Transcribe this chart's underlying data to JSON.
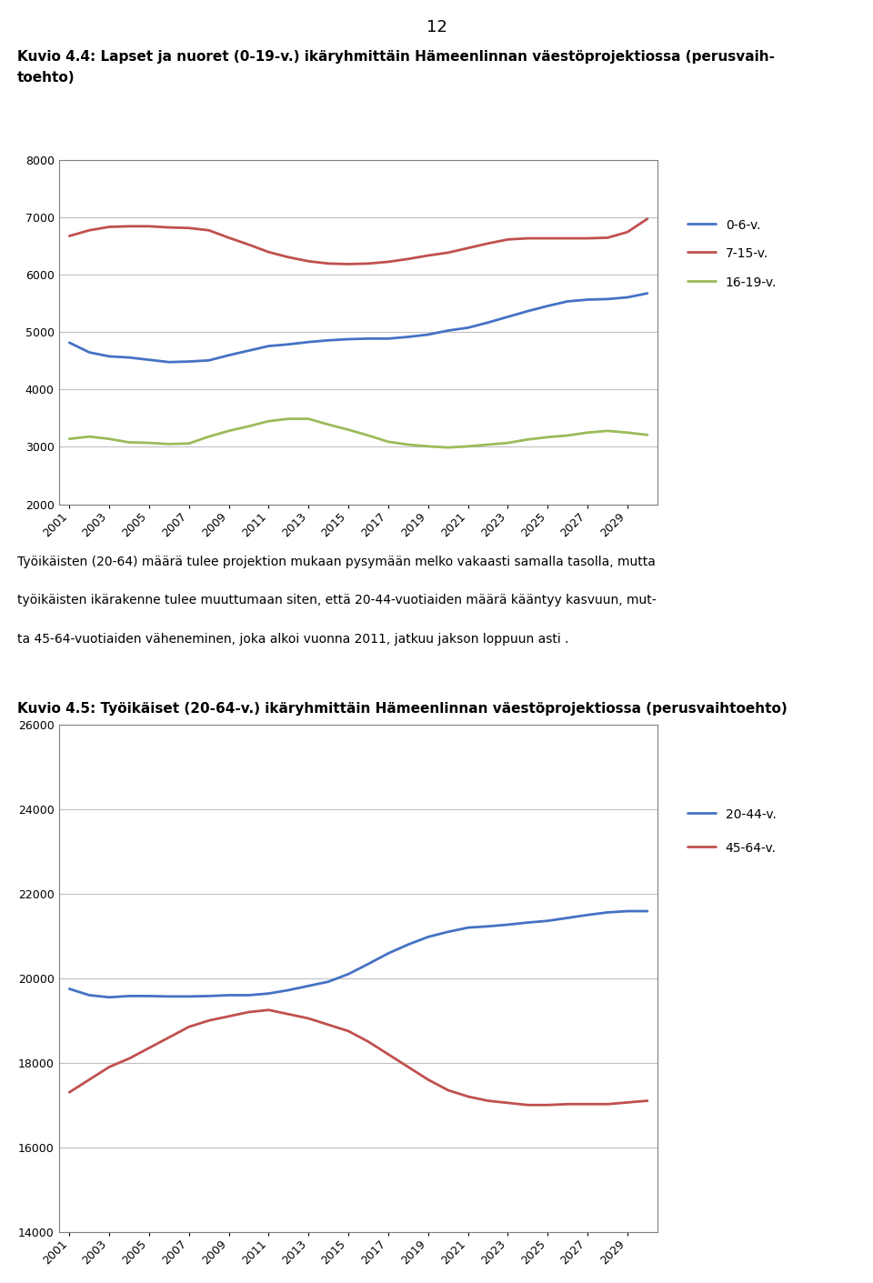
{
  "page_number": "12",
  "title1_line1": "Kuvio 4.4: Lapset ja nuoret (0-19-v.) ikäryhmittäin Hämeenlinnan väestöprojektiossa (perusvaih-",
  "title1_line2": "toehto)",
  "middle_text_line1": "Työikäisten (20-64) määrä tulee projektion mukaan pysymään melko vakaasti samalla tasolla, mutta",
  "middle_text_line2": "työikäisten ikärakenne tulee muuttumaan siten, että 20-44-vuotiaiden määrä kääntyy kasvuun, mut-",
  "middle_text_line3": "ta 45-64-vuotiaiden väheneminen, joka alkoi vuonna 2011, jatkuu jakson loppuun asti .",
  "title2": "Kuvio 4.5: Työikäiset (20-64-v.) ikäryhmittäin Hämeenlinnan väestöprojektiossa (perusvaihtoehto)",
  "years": [
    2001,
    2002,
    2003,
    2004,
    2005,
    2006,
    2007,
    2008,
    2009,
    2010,
    2011,
    2012,
    2013,
    2014,
    2015,
    2016,
    2017,
    2018,
    2019,
    2020,
    2021,
    2022,
    2023,
    2024,
    2025,
    2026,
    2027,
    2028,
    2029,
    2030
  ],
  "chart1": {
    "series_order": [
      "0-6-v.",
      "7-15-v.",
      "16-19-v."
    ],
    "series": {
      "0-6-v.": [
        4820,
        4650,
        4580,
        4560,
        4520,
        4480,
        4490,
        4510,
        4600,
        4680,
        4760,
        4790,
        4830,
        4860,
        4880,
        4890,
        4890,
        4920,
        4960,
        5030,
        5080,
        5170,
        5270,
        5370,
        5460,
        5540,
        5570,
        5580,
        5610,
        5680
      ],
      "7-15-v.": [
        6680,
        6780,
        6840,
        6850,
        6850,
        6830,
        6820,
        6780,
        6650,
        6530,
        6400,
        6310,
        6240,
        6200,
        6190,
        6200,
        6230,
        6280,
        6340,
        6390,
        6470,
        6550,
        6620,
        6640,
        6640,
        6640,
        6640,
        6650,
        6750,
        6980
      ],
      "16-19-v.": [
        3140,
        3180,
        3140,
        3080,
        3070,
        3050,
        3060,
        3180,
        3280,
        3360,
        3450,
        3490,
        3490,
        3390,
        3300,
        3200,
        3090,
        3040,
        3010,
        2990,
        3010,
        3040,
        3070,
        3130,
        3170,
        3200,
        3250,
        3280,
        3250,
        3210
      ]
    },
    "colors": {
      "0-6-v.": "#4472C4",
      "7-15-v.": "#C0504D",
      "16-19-v.": "#9BBB59"
    },
    "ylim": [
      2000,
      8000
    ],
    "yticks": [
      2000,
      3000,
      4000,
      5000,
      6000,
      7000,
      8000
    ]
  },
  "chart2": {
    "series_order": [
      "20-44-v.",
      "45-64-v."
    ],
    "series": {
      "20-44-v.": [
        19750,
        19600,
        19550,
        19580,
        19580,
        19570,
        19570,
        19580,
        19600,
        19600,
        19640,
        19720,
        19820,
        19920,
        20100,
        20340,
        20590,
        20800,
        20980,
        21100,
        21200,
        21230,
        21270,
        21320,
        21360,
        21430,
        21500,
        21560,
        21590,
        21590
      ],
      "45-64-v.": [
        17300,
        17600,
        17900,
        18100,
        18350,
        18600,
        18850,
        19000,
        19100,
        19200,
        19250,
        19150,
        19050,
        18900,
        18750,
        18500,
        18200,
        17900,
        17600,
        17350,
        17200,
        17100,
        17050,
        17000,
        17000,
        17020,
        17020,
        17020,
        17060,
        17100
      ]
    },
    "colors": {
      "20-44-v.": "#4472C4",
      "45-64-v.": "#C0504D"
    },
    "ylim": [
      14000,
      26000
    ],
    "yticks": [
      14000,
      16000,
      18000,
      20000,
      22000,
      24000,
      26000
    ]
  },
  "x_tick_years": [
    2001,
    2003,
    2005,
    2007,
    2009,
    2011,
    2013,
    2015,
    2017,
    2019,
    2021,
    2023,
    2025,
    2027,
    2029
  ],
  "background_color": "#FFFFFF",
  "grid_color": "#C0C0C0",
  "box_color": "#808080"
}
